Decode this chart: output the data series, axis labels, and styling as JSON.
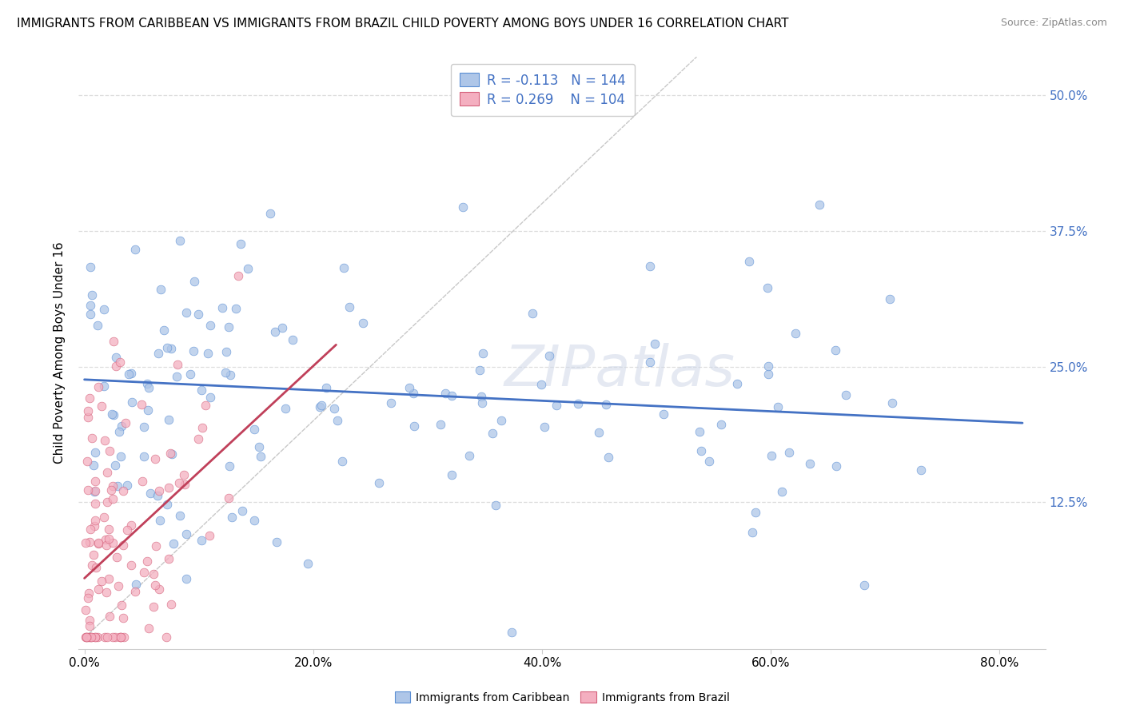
{
  "title": "IMMIGRANTS FROM CARIBBEAN VS IMMIGRANTS FROM BRAZIL CHILD POVERTY AMONG BOYS UNDER 16 CORRELATION CHART",
  "source": "Source: ZipAtlas.com",
  "ylabel": "Child Poverty Among Boys Under 16",
  "x_tick_labels": [
    "0.0%",
    "20.0%",
    "40.0%",
    "60.0%",
    "80.0%"
  ],
  "x_tick_positions": [
    0.0,
    0.2,
    0.4,
    0.6,
    0.8
  ],
  "y_tick_labels": [
    "12.5%",
    "25.0%",
    "37.5%",
    "50.0%"
  ],
  "y_tick_positions": [
    0.125,
    0.25,
    0.375,
    0.5
  ],
  "xlim": [
    -0.005,
    0.84
  ],
  "ylim": [
    -0.01,
    0.535
  ],
  "blue_R": -0.113,
  "blue_N": 144,
  "pink_R": 0.269,
  "pink_N": 104,
  "blue_color": "#aec6e8",
  "pink_color": "#f4afc0",
  "blue_edge_color": "#5b8fd4",
  "pink_edge_color": "#d4607a",
  "blue_line_color": "#4472c4",
  "pink_line_color": "#c0405a",
  "diagonal_color": "#c8c8c8",
  "legend_label_blue": "Immigrants from Caribbean",
  "legend_label_pink": "Immigrants from Brazil",
  "title_fontsize": 11,
  "axis_label_fontsize": 11,
  "tick_fontsize": 11,
  "watermark": "ZIPatlas",
  "blue_trend_x": [
    0.0,
    0.82
  ],
  "blue_trend_y": [
    0.238,
    0.198
  ],
  "pink_trend_x": [
    0.0,
    0.22
  ],
  "pink_trend_y": [
    0.055,
    0.27
  ]
}
